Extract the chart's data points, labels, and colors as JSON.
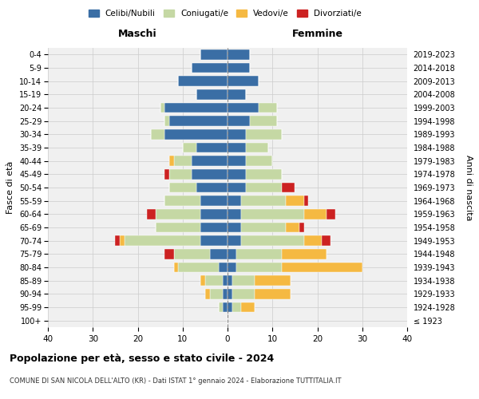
{
  "age_groups": [
    "100+",
    "95-99",
    "90-94",
    "85-89",
    "80-84",
    "75-79",
    "70-74",
    "65-69",
    "60-64",
    "55-59",
    "50-54",
    "45-49",
    "40-44",
    "35-39",
    "30-34",
    "25-29",
    "20-24",
    "15-19",
    "10-14",
    "5-9",
    "0-4"
  ],
  "birth_years": [
    "≤ 1923",
    "1924-1928",
    "1929-1933",
    "1934-1938",
    "1939-1943",
    "1944-1948",
    "1949-1953",
    "1954-1958",
    "1959-1963",
    "1964-1968",
    "1969-1973",
    "1974-1978",
    "1979-1983",
    "1984-1988",
    "1989-1993",
    "1994-1998",
    "1999-2003",
    "2004-2008",
    "2009-2013",
    "2014-2018",
    "2019-2023"
  ],
  "colors": {
    "celibi": "#3a6ea5",
    "coniugati": "#c5d8a4",
    "vedovi": "#f5b942",
    "divorziati": "#cc2222"
  },
  "maschi": {
    "celibi": [
      0,
      1,
      1,
      1,
      2,
      4,
      6,
      6,
      6,
      6,
      7,
      8,
      8,
      7,
      14,
      13,
      14,
      7,
      11,
      8,
      6
    ],
    "coniugati": [
      0,
      1,
      3,
      4,
      9,
      8,
      17,
      10,
      10,
      8,
      6,
      5,
      4,
      3,
      3,
      1,
      1,
      0,
      0,
      0,
      0
    ],
    "vedovi": [
      0,
      0,
      1,
      1,
      1,
      0,
      1,
      0,
      0,
      0,
      0,
      0,
      1,
      0,
      0,
      0,
      0,
      0,
      0,
      0,
      0
    ],
    "divorziati": [
      0,
      0,
      0,
      0,
      0,
      2,
      1,
      0,
      2,
      0,
      0,
      1,
      0,
      0,
      0,
      0,
      0,
      0,
      0,
      0,
      0
    ]
  },
  "femmine": {
    "celibi": [
      0,
      1,
      1,
      1,
      2,
      2,
      3,
      3,
      3,
      3,
      4,
      4,
      4,
      4,
      4,
      5,
      7,
      4,
      7,
      5,
      5
    ],
    "coniugati": [
      0,
      2,
      5,
      5,
      10,
      10,
      14,
      10,
      14,
      10,
      8,
      8,
      6,
      5,
      8,
      6,
      4,
      0,
      0,
      0,
      0
    ],
    "vedovi": [
      0,
      3,
      8,
      8,
      18,
      10,
      4,
      3,
      5,
      4,
      0,
      0,
      0,
      0,
      0,
      0,
      0,
      0,
      0,
      0,
      0
    ],
    "divorziati": [
      0,
      0,
      0,
      0,
      0,
      0,
      2,
      1,
      2,
      1,
      3,
      0,
      0,
      0,
      0,
      0,
      0,
      0,
      0,
      0,
      0
    ]
  },
  "xlim": 40,
  "title": "Popolazione per età, sesso e stato civile - 2024",
  "subtitle": "COMUNE DI SAN NICOLA DELL'ALTO (KR) - Dati ISTAT 1° gennaio 2024 - Elaborazione TUTTITALIA.IT",
  "ylabel_left": "Fasce di età",
  "ylabel_right": "Anni di nascita",
  "xlabel_left": "Maschi",
  "xlabel_right": "Femmine",
  "legend_labels": [
    "Celibi/Nubili",
    "Coniugati/e",
    "Vedovi/e",
    "Divorziati/e"
  ],
  "bg_color": "#ffffff",
  "grid_color": "#cccccc"
}
